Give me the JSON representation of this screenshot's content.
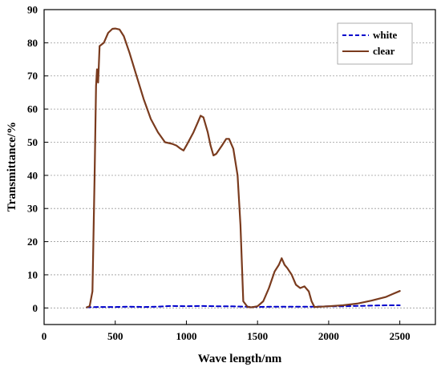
{
  "chart_data": {
    "type": "line",
    "xlabel": "Wave length/nm",
    "ylabel": "Transmittance/%",
    "xlim": [
      0,
      2750
    ],
    "ylim": [
      -5,
      90
    ],
    "xticks": [
      0,
      500,
      1000,
      1500,
      2000,
      2500
    ],
    "yticks": [
      0,
      10,
      20,
      30,
      40,
      50,
      60,
      70,
      80,
      90
    ],
    "grid": "horizontal-dashed",
    "legend_position": "top-right",
    "series": [
      {
        "name": "white",
        "color": "#0000cc",
        "style": "dashed",
        "x": [
          300,
          400,
          500,
          600,
          700,
          800,
          900,
          1000,
          1100,
          1200,
          1300,
          1400,
          1500,
          1600,
          1700,
          1800,
          1900,
          2000,
          2100,
          2200,
          2300,
          2400,
          2500
        ],
        "y": [
          0.2,
          0.3,
          0.3,
          0.4,
          0.3,
          0.4,
          0.6,
          0.5,
          0.6,
          0.5,
          0.5,
          0.4,
          0.3,
          0.4,
          0.4,
          0.4,
          0.4,
          0.5,
          0.5,
          0.6,
          0.7,
          0.8,
          0.8
        ]
      },
      {
        "name": "clear",
        "color": "#7a3b1e",
        "style": "solid",
        "x": [
          300,
          320,
          340,
          355,
          365,
          372,
          380,
          390,
          420,
          450,
          480,
          500,
          530,
          560,
          600,
          650,
          700,
          750,
          800,
          850,
          900,
          930,
          960,
          980,
          1000,
          1050,
          1080,
          1100,
          1120,
          1150,
          1170,
          1190,
          1210,
          1250,
          1280,
          1300,
          1330,
          1360,
          1380,
          1400,
          1430,
          1460,
          1500,
          1540,
          1580,
          1620,
          1650,
          1670,
          1690,
          1710,
          1740,
          1770,
          1800,
          1830,
          1860,
          1880,
          1900,
          1950,
          2000,
          2100,
          2200,
          2300,
          2400,
          2450,
          2500
        ],
        "y": [
          0.2,
          0.5,
          5,
          40,
          67,
          72,
          68,
          79,
          80,
          83,
          84.2,
          84.3,
          84,
          82,
          77,
          70,
          63,
          57,
          53,
          50,
          49.5,
          49,
          48,
          47.5,
          49,
          53,
          56,
          58,
          57.5,
          53,
          49,
          46,
          46.5,
          49,
          51,
          51,
          48,
          40,
          25,
          2,
          0.3,
          0.2,
          0.5,
          2,
          6,
          11,
          13,
          15,
          13,
          12,
          10,
          7,
          6,
          6.5,
          5,
          2,
          0.3,
          0.4,
          0.5,
          0.8,
          1.3,
          2.2,
          3.3,
          4.2,
          5.1
        ]
      }
    ]
  }
}
